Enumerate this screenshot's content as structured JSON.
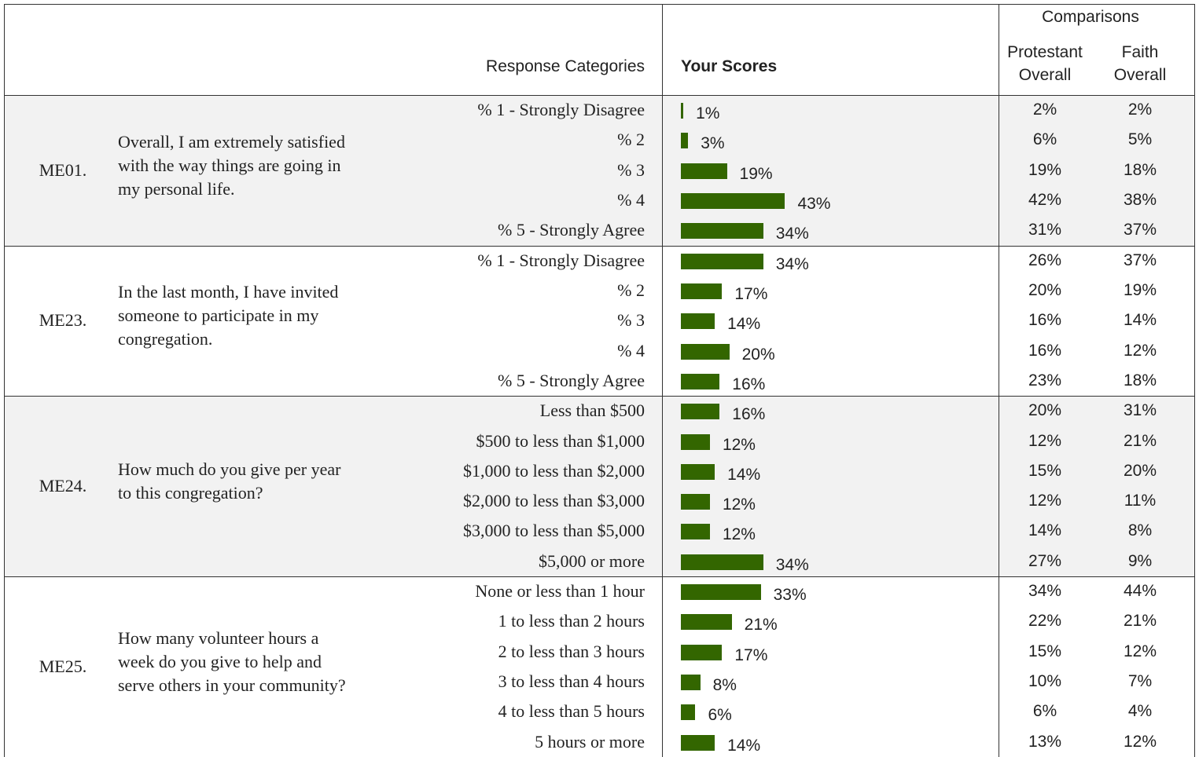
{
  "header": {
    "categories_label": "Response Categories",
    "scores_label": "Your Scores",
    "comparisons_label": "Comparisons",
    "protestant_label": "Protestant Overall",
    "faith_label": "Faith Overall"
  },
  "sections": [
    {
      "code": "ME01.",
      "question": "Overall, I am extremely satisfied with the way things are going in my personal life.",
      "categories": [
        "% 1 - Strongly Disagree",
        "% 2",
        "% 3",
        "% 4",
        "% 5 - Strongly Agree"
      ],
      "values": [
        1,
        3,
        19,
        43,
        34
      ],
      "value_labels": [
        "1%",
        "3%",
        "19%",
        "43%",
        "34%"
      ],
      "protestant": [
        "2%",
        "6%",
        "19%",
        "42%",
        "31%"
      ],
      "faith": [
        "2%",
        "5%",
        "18%",
        "38%",
        "37%"
      ]
    },
    {
      "code": "ME23.",
      "question": "In the last month, I have invited someone to participate in my congregation.",
      "categories": [
        "% 1 - Strongly Disagree",
        "% 2",
        "% 3",
        "% 4",
        "% 5 - Strongly Agree"
      ],
      "values": [
        34,
        17,
        14,
        20,
        16
      ],
      "value_labels": [
        "34%",
        "17%",
        "14%",
        "20%",
        "16%"
      ],
      "protestant": [
        "26%",
        "20%",
        "16%",
        "16%",
        "23%"
      ],
      "faith": [
        "37%",
        "19%",
        "14%",
        "12%",
        "18%"
      ]
    },
    {
      "code": "ME24.",
      "question": "How much do you give per year to this congregation?",
      "categories": [
        "Less than $500",
        "$500 to less than $1,000",
        "$1,000 to less than $2,000",
        "$2,000 to less than $3,000",
        "$3,000 to less than $5,000",
        "$5,000 or more"
      ],
      "values": [
        16,
        12,
        14,
        12,
        12,
        34
      ],
      "value_labels": [
        "16%",
        "12%",
        "14%",
        "12%",
        "12%",
        "34%"
      ],
      "protestant": [
        "20%",
        "12%",
        "15%",
        "12%",
        "14%",
        "27%"
      ],
      "faith": [
        "31%",
        "21%",
        "20%",
        "11%",
        "8%",
        "9%"
      ]
    },
    {
      "code": "ME25.",
      "question": "How many volunteer hours a week do you give to help and serve others in your community?",
      "categories": [
        "None or less than 1 hour",
        "1 to less than 2 hours",
        "2 to less than 3 hours",
        "3 to less than 4 hours",
        "4 to less than 5 hours",
        "5 hours or more"
      ],
      "values": [
        33,
        21,
        17,
        8,
        6,
        14
      ],
      "value_labels": [
        "33%",
        "21%",
        "17%",
        "8%",
        "6%",
        "14%"
      ],
      "protestant": [
        "34%",
        "22%",
        "15%",
        "10%",
        "6%",
        "13%"
      ],
      "faith": [
        "44%",
        "21%",
        "12%",
        "7%",
        "4%",
        "12%"
      ]
    }
  ]
}
